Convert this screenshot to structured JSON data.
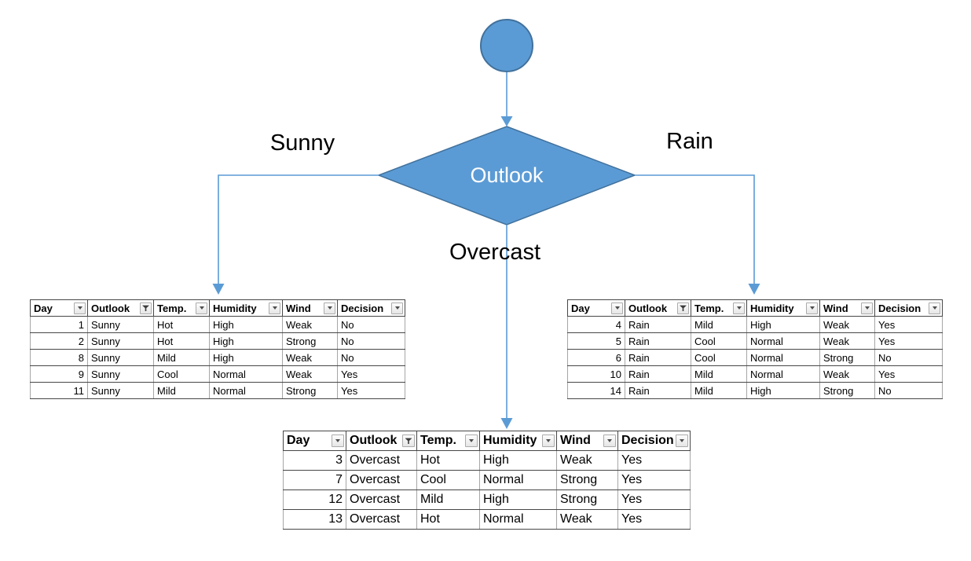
{
  "colors": {
    "shape_fill": "#5B9BD5",
    "shape_stroke": "#41719C",
    "connector": "#5B9BD5",
    "diamond_text": "#FFFFFF",
    "label_text": "#000000"
  },
  "diagram": {
    "decision_node": "Outlook",
    "branch_labels": {
      "left": "Sunny",
      "right": "Rain",
      "middle": "Overcast"
    }
  },
  "sunny_table": {
    "headers": [
      {
        "label": "Day",
        "icon": "dropdown"
      },
      {
        "label": "Outlook",
        "icon": "filter"
      },
      {
        "label": "Temp.",
        "icon": "dropdown"
      },
      {
        "label": "Humidity",
        "icon": "dropdown"
      },
      {
        "label": "Wind",
        "icon": "dropdown"
      },
      {
        "label": "Decision",
        "icon": "dropdown"
      }
    ],
    "rows": [
      [
        "1",
        "Sunny",
        "Hot",
        "High",
        "Weak",
        "No"
      ],
      [
        "2",
        "Sunny",
        "Hot",
        "High",
        "Strong",
        "No"
      ],
      [
        "8",
        "Sunny",
        "Mild",
        "High",
        "Weak",
        "No"
      ],
      [
        "9",
        "Sunny",
        "Cool",
        "Normal",
        "Weak",
        "Yes"
      ],
      [
        "11",
        "Sunny",
        "Mild",
        "Normal",
        "Strong",
        "Yes"
      ]
    ]
  },
  "rain_table": {
    "headers": [
      {
        "label": "Day",
        "icon": "dropdown"
      },
      {
        "label": "Outlook",
        "icon": "filter"
      },
      {
        "label": "Temp.",
        "icon": "dropdown"
      },
      {
        "label": "Humidity",
        "icon": "dropdown"
      },
      {
        "label": "Wind",
        "icon": "dropdown"
      },
      {
        "label": "Decision",
        "icon": "dropdown"
      }
    ],
    "rows": [
      [
        "4",
        "Rain",
        "Mild",
        "High",
        "Weak",
        "Yes"
      ],
      [
        "5",
        "Rain",
        "Cool",
        "Normal",
        "Weak",
        "Yes"
      ],
      [
        "6",
        "Rain",
        "Cool",
        "Normal",
        "Strong",
        "No"
      ],
      [
        "10",
        "Rain",
        "Mild",
        "Normal",
        "Weak",
        "Yes"
      ],
      [
        "14",
        "Rain",
        "Mild",
        "High",
        "Strong",
        "No"
      ]
    ]
  },
  "overcast_table": {
    "headers": [
      {
        "label": "Day",
        "icon": "dropdown"
      },
      {
        "label": "Outlook",
        "icon": "filter"
      },
      {
        "label": "Temp.",
        "icon": "dropdown"
      },
      {
        "label": "Humidity",
        "icon": "dropdown"
      },
      {
        "label": "Wind",
        "icon": "dropdown"
      },
      {
        "label": "Decision",
        "icon": "dropdown"
      }
    ],
    "rows": [
      [
        "3",
        "Overcast",
        "Hot",
        "High",
        "Weak",
        "Yes"
      ],
      [
        "7",
        "Overcast",
        "Cool",
        "Normal",
        "Strong",
        "Yes"
      ],
      [
        "12",
        "Overcast",
        "Mild",
        "High",
        "Strong",
        "Yes"
      ],
      [
        "13",
        "Overcast",
        "Hot",
        "Normal",
        "Weak",
        "Yes"
      ]
    ]
  }
}
